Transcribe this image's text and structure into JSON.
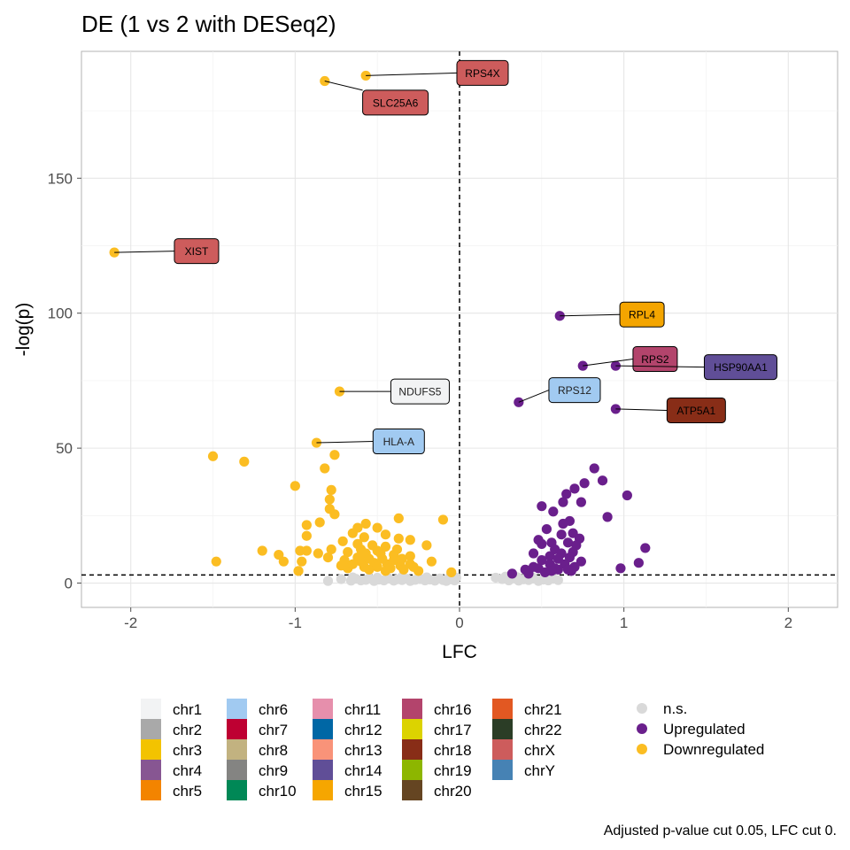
{
  "chart_data": {
    "type": "scatter",
    "title": "DE (1 vs 2 with DESeq2)",
    "xlabel": "LFC",
    "ylabel": "-log(p)",
    "xlim": [
      -2.3,
      2.3
    ],
    "ylim": [
      -9,
      197
    ],
    "xticks": [
      -2,
      -1,
      0,
      1,
      2
    ],
    "yticks": [
      0,
      50,
      100,
      150
    ],
    "grid": true,
    "thresholds": {
      "y": 3,
      "x": 0
    },
    "caption": "Adjusted p-value cut 0.05, LFC cut 0.",
    "colors": {
      "ns": "#d9d9d9",
      "up": "#6a1f8c",
      "down": "#fbbd22"
    },
    "series": [
      {
        "name": "n.s.",
        "color": "#d9d9d9",
        "points": [
          [
            -0.8,
            0.8
          ],
          [
            -0.72,
            1.5
          ],
          [
            -0.66,
            0.9
          ],
          [
            -0.63,
            1.6
          ],
          [
            -0.6,
            1.0
          ],
          [
            -0.57,
            1.2
          ],
          [
            -0.55,
            1.8
          ],
          [
            -0.52,
            0.8
          ],
          [
            -0.49,
            1.3
          ],
          [
            -0.46,
            1.0
          ],
          [
            -0.43,
            1.7
          ],
          [
            -0.4,
            0.9
          ],
          [
            -0.38,
            1.4
          ],
          [
            -0.35,
            1.1
          ],
          [
            -0.32,
            1.6
          ],
          [
            -0.3,
            0.8
          ],
          [
            -0.27,
            1.2
          ],
          [
            -0.24,
            1.5
          ],
          [
            -0.21,
            1.0
          ],
          [
            -0.18,
            1.3
          ],
          [
            -0.15,
            0.9
          ],
          [
            -0.12,
            1.7
          ],
          [
            -0.1,
            1.1
          ],
          [
            -0.08,
            0.8
          ],
          [
            -0.05,
            1.4
          ],
          [
            -0.03,
            1.0
          ],
          [
            -0.02,
            2.0
          ],
          [
            -0.06,
            2.2
          ],
          [
            -0.2,
            2.1
          ],
          [
            -0.35,
            2.3
          ],
          [
            -0.5,
            2.0
          ],
          [
            -0.65,
            2.1
          ],
          [
            0.22,
            2.0
          ],
          [
            0.26,
            1.5
          ],
          [
            0.3,
            1.0
          ],
          [
            0.33,
            1.8
          ],
          [
            0.36,
            0.9
          ],
          [
            0.39,
            1.4
          ],
          [
            0.42,
            1.1
          ],
          [
            0.45,
            1.7
          ],
          [
            0.48,
            0.8
          ],
          [
            0.51,
            1.3
          ],
          [
            0.54,
            1.0
          ],
          [
            0.57,
            1.6
          ],
          [
            0.6,
            1.1
          ],
          [
            0.52,
            2.2
          ],
          [
            0.44,
            2.3
          ],
          [
            0.35,
            2.2
          ],
          [
            0.28,
            2.4
          ]
        ]
      },
      {
        "name": "Upregulated",
        "color": "#6a1f8c",
        "points": [
          [
            0.61,
            99
          ],
          [
            0.75,
            80.5
          ],
          [
            0.95,
            80.5
          ],
          [
            0.36,
            67
          ],
          [
            0.95,
            64.5
          ],
          [
            0.82,
            42.5
          ],
          [
            0.87,
            38
          ],
          [
            0.76,
            37
          ],
          [
            0.7,
            35
          ],
          [
            0.65,
            33
          ],
          [
            0.63,
            30
          ],
          [
            1.02,
            32.5
          ],
          [
            0.74,
            30
          ],
          [
            0.9,
            24.5
          ],
          [
            0.67,
            23
          ],
          [
            0.63,
            22
          ],
          [
            0.57,
            26.5
          ],
          [
            0.5,
            28.5
          ],
          [
            0.53,
            20
          ],
          [
            0.62,
            18
          ],
          [
            0.69,
            18.5
          ],
          [
            0.73,
            16.5
          ],
          [
            0.48,
            16
          ],
          [
            0.5,
            14.5
          ],
          [
            0.56,
            15
          ],
          [
            0.66,
            15
          ],
          [
            0.71,
            14
          ],
          [
            0.58,
            12.5
          ],
          [
            0.45,
            11
          ],
          [
            0.62,
            11
          ],
          [
            0.69,
            11.5
          ],
          [
            0.55,
            10
          ],
          [
            0.67,
            9.5
          ],
          [
            0.6,
            9
          ],
          [
            0.5,
            8.5
          ],
          [
            0.74,
            8
          ],
          [
            0.64,
            7
          ],
          [
            0.55,
            7
          ],
          [
            0.7,
            6
          ],
          [
            0.48,
            5.5
          ],
          [
            0.6,
            5
          ],
          [
            0.68,
            4.5
          ],
          [
            0.52,
            4
          ],
          [
            0.42,
            3.5
          ],
          [
            0.32,
            3.5
          ],
          [
            0.4,
            5
          ],
          [
            0.58,
            5.5
          ],
          [
            0.45,
            6
          ],
          [
            1.13,
            13
          ],
          [
            1.09,
            7.5
          ],
          [
            0.98,
            5.5
          ],
          [
            0.66,
            5
          ],
          [
            0.56,
            4.5
          ]
        ]
      },
      {
        "name": "Downregulated",
        "color": "#fbbd22",
        "points": [
          [
            -2.1,
            122.5
          ],
          [
            -0.57,
            188
          ],
          [
            -0.82,
            186
          ],
          [
            -0.73,
            71
          ],
          [
            -0.87,
            52
          ],
          [
            -1.5,
            47
          ],
          [
            -1.31,
            45
          ],
          [
            -0.76,
            47.5
          ],
          [
            -0.82,
            42.5
          ],
          [
            -1.0,
            36
          ],
          [
            -0.78,
            34.5
          ],
          [
            -0.79,
            31
          ],
          [
            -0.79,
            27.5
          ],
          [
            -0.76,
            25.5
          ],
          [
            -0.85,
            22.5
          ],
          [
            -0.93,
            21.5
          ],
          [
            -0.93,
            17.5
          ],
          [
            -0.37,
            24
          ],
          [
            -0.1,
            23.5
          ],
          [
            -0.57,
            22
          ],
          [
            -0.62,
            20.5
          ],
          [
            -0.5,
            20.5
          ],
          [
            -0.65,
            18.5
          ],
          [
            -0.45,
            18
          ],
          [
            -0.37,
            16.5
          ],
          [
            -0.3,
            16
          ],
          [
            -0.58,
            17
          ],
          [
            -0.71,
            15.5
          ],
          [
            -0.62,
            14.5
          ],
          [
            -0.53,
            14
          ],
          [
            -0.45,
            13.5
          ],
          [
            -0.38,
            12.5
          ],
          [
            -0.2,
            14
          ],
          [
            -0.78,
            12.5
          ],
          [
            -0.68,
            11.5
          ],
          [
            -0.57,
            11
          ],
          [
            -0.48,
            11
          ],
          [
            -0.4,
            10.5
          ],
          [
            -0.3,
            10
          ],
          [
            -0.86,
            11
          ],
          [
            -0.93,
            12
          ],
          [
            -0.97,
            12
          ],
          [
            -1.2,
            12
          ],
          [
            -1.1,
            10.5
          ],
          [
            -1.07,
            8
          ],
          [
            -0.96,
            8
          ],
          [
            -1.48,
            8
          ],
          [
            -0.98,
            4.5
          ],
          [
            -0.8,
            9.5
          ],
          [
            -0.7,
            8.5
          ],
          [
            -0.6,
            8
          ],
          [
            -0.52,
            7.5
          ],
          [
            -0.44,
            7
          ],
          [
            -0.36,
            6.5
          ],
          [
            -0.3,
            7
          ],
          [
            -0.17,
            8
          ],
          [
            -0.05,
            4
          ],
          [
            -0.55,
            5
          ],
          [
            -0.45,
            4.5
          ],
          [
            -0.68,
            5.5
          ],
          [
            -0.34,
            5
          ],
          [
            -0.25,
            4.5
          ],
          [
            -0.62,
            9.5
          ],
          [
            -0.55,
            9
          ],
          [
            -0.47,
            9
          ],
          [
            -0.4,
            8.5
          ],
          [
            -0.35,
            9
          ],
          [
            -0.65,
            7
          ],
          [
            -0.58,
            6
          ],
          [
            -0.5,
            6
          ],
          [
            -0.42,
            5.5
          ],
          [
            -0.72,
            6.5
          ],
          [
            -0.28,
            6
          ],
          [
            -0.6,
            12.5
          ],
          [
            -0.5,
            12
          ]
        ]
      }
    ],
    "labels": [
      {
        "text": "RPS4X",
        "x": -0.57,
        "y": 188,
        "lx": 0.14,
        "ly": 189,
        "fill": "#cd5c5c",
        "textColor": "#000000"
      },
      {
        "text": "SLC25A6",
        "x": -0.82,
        "y": 186,
        "lx": -0.39,
        "ly": 178,
        "fill": "#cd5c5c",
        "textColor": "#000000"
      },
      {
        "text": "XIST",
        "x": -2.1,
        "y": 122.5,
        "lx": -1.6,
        "ly": 123,
        "fill": "#cd5c5c",
        "textColor": "#000000"
      },
      {
        "text": "RPL4",
        "x": 0.61,
        "y": 99,
        "lx": 1.11,
        "ly": 99.5,
        "fill": "#f4a500",
        "textColor": "#000000"
      },
      {
        "text": "RPS2",
        "x": 0.75,
        "y": 80.5,
        "lx": 1.19,
        "ly": 83,
        "fill": "#b3446c",
        "textColor": "#000000"
      },
      {
        "text": "HSP90AA1",
        "x": 0.95,
        "y": 80.5,
        "lx": 1.71,
        "ly": 80,
        "fill": "#604e97",
        "textColor": "#000000"
      },
      {
        "text": "NDUFS5",
        "x": -0.73,
        "y": 71,
        "lx": -0.24,
        "ly": 71,
        "fill": "#f2f3f4",
        "textColor": "#222222"
      },
      {
        "text": "RPS12",
        "x": 0.36,
        "y": 67,
        "lx": 0.7,
        "ly": 71.5,
        "fill": "#a1caf1",
        "textColor": "#222222"
      },
      {
        "text": "ATP5A1",
        "x": 0.95,
        "y": 64.5,
        "lx": 1.44,
        "ly": 64,
        "fill": "#882d17",
        "textColor": "#000000"
      },
      {
        "text": "HLA-A",
        "x": -0.87,
        "y": 52,
        "lx": -0.37,
        "ly": 52.5,
        "fill": "#a1caf1",
        "textColor": "#222222"
      }
    ],
    "legend": {
      "placement": "bottom",
      "chromosomes": [
        {
          "name": "chr1",
          "color": "#f2f3f4"
        },
        {
          "name": "chr2",
          "color": "#a9a9a9"
        },
        {
          "name": "chr3",
          "color": "#f3c300"
        },
        {
          "name": "chr4",
          "color": "#875692"
        },
        {
          "name": "chr5",
          "color": "#f38400"
        },
        {
          "name": "chr6",
          "color": "#a1caf1"
        },
        {
          "name": "chr7",
          "color": "#be0032"
        },
        {
          "name": "chr8",
          "color": "#c2b280"
        },
        {
          "name": "chr9",
          "color": "#848482"
        },
        {
          "name": "chr10",
          "color": "#008856"
        },
        {
          "name": "chr11",
          "color": "#e68fac"
        },
        {
          "name": "chr12",
          "color": "#0067a5"
        },
        {
          "name": "chr13",
          "color": "#f99379"
        },
        {
          "name": "chr14",
          "color": "#604e97"
        },
        {
          "name": "chr15",
          "color": "#f6a600"
        },
        {
          "name": "chr16",
          "color": "#b3446c"
        },
        {
          "name": "chr17",
          "color": "#dcd300"
        },
        {
          "name": "chr18",
          "color": "#882d17"
        },
        {
          "name": "chr19",
          "color": "#8db600"
        },
        {
          "name": "chr20",
          "color": "#654522"
        },
        {
          "name": "chr21",
          "color": "#e25822"
        },
        {
          "name": "chr22",
          "color": "#2b3d26"
        },
        {
          "name": "chrX",
          "color": "#cd5c5c"
        },
        {
          "name": "chrY",
          "color": "#4682b4"
        }
      ],
      "significance": [
        {
          "name": "n.s.",
          "color": "#d9d9d9"
        },
        {
          "name": "Upregulated",
          "color": "#6a1f8c"
        },
        {
          "name": "Downregulated",
          "color": "#fbbd22"
        }
      ]
    }
  }
}
